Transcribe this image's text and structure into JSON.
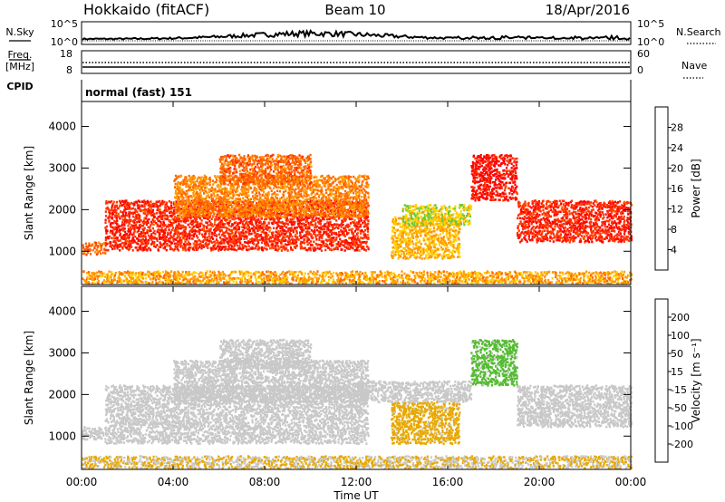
{
  "header": {
    "left": "Hokkaido (fitACF)",
    "center": "Beam 10",
    "right": "18/Apr/2016"
  },
  "info": {
    "nsky_label": "N.Sky",
    "nsky_ticks": [
      "10^5",
      "10^0"
    ],
    "nsearch_label": "N.Search",
    "nsearch_ticks": [
      "10^5",
      "10^0"
    ],
    "freq_label_1": "Freq.",
    "freq_label_2": "[MHz]",
    "freq_ticks": [
      "18",
      "8"
    ],
    "nave_label": "Nave",
    "nave_ticks": [
      "60",
      "0"
    ],
    "cpid_label": "CPID",
    "mode_text": "normal (fast) 151"
  },
  "colors": {
    "power": [
      "#0000ff",
      "#1f4fa0",
      "#2e8b57",
      "#66cc33",
      "#ffd000",
      "#ff9900",
      "#ff6600",
      "#ff3300",
      "#ff0000"
    ],
    "velocity": [
      "#ff0000",
      "#ff5500",
      "#ff9900",
      "#e8a800",
      "#c8c8c8",
      "#55bb33",
      "#2e8b57",
      "#1f3fa0",
      "#0000cc"
    ],
    "ground": "#c8c8c8"
  },
  "chart_data": [
    {
      "type": "heatmap",
      "title": "",
      "xlabel": "",
      "ylabel": "Slant Range [km]",
      "xlim": [
        0,
        24
      ],
      "ylim": [
        200,
        4600
      ],
      "yticks": [
        "1000",
        "2000",
        "3000",
        "4000"
      ],
      "colorbar": {
        "label": "Power [dB]",
        "ticks": [
          "4",
          "8",
          "12",
          "16",
          "20",
          "24",
          "28"
        ],
        "range": [
          0,
          30
        ]
      },
      "echo_bands": [
        {
          "t0": 0.0,
          "t1": 1.0,
          "r0": 900,
          "r1": 1200,
          "value": 22
        },
        {
          "t0": 1.0,
          "t1": 12.5,
          "r0": 1000,
          "r1": 2200,
          "value": 26
        },
        {
          "t0": 4.0,
          "t1": 12.5,
          "r0": 1800,
          "r1": 2800,
          "value": 20
        },
        {
          "t0": 6.0,
          "t1": 10.0,
          "r0": 2600,
          "r1": 3300,
          "value": 22
        },
        {
          "t0": 13.5,
          "t1": 16.5,
          "r0": 800,
          "r1": 1800,
          "value": 17
        },
        {
          "t0": 14.0,
          "t1": 17.0,
          "r0": 1600,
          "r1": 2100,
          "value": 14
        },
        {
          "t0": 17.0,
          "t1": 19.0,
          "r0": 2200,
          "r1": 3300,
          "value": 28
        },
        {
          "t0": 19.0,
          "t1": 24.0,
          "r0": 1200,
          "r1": 2200,
          "value": 26
        },
        {
          "t0": 0.0,
          "t1": 24.0,
          "r0": 200,
          "r1": 500,
          "value": 18
        }
      ]
    },
    {
      "type": "heatmap",
      "title": "",
      "xlabel": "Time UT",
      "ylabel": "Slant Range [km]",
      "xlim": [
        0,
        24
      ],
      "ylim": [
        200,
        4600
      ],
      "xticks": [
        "00:00",
        "04:00",
        "08:00",
        "12:00",
        "16:00",
        "20:00",
        "00:00"
      ],
      "yticks": [
        "1000",
        "2000",
        "3000",
        "4000"
      ],
      "colorbar": {
        "label": "Velocity [m s⁻¹]",
        "ticks": [
          "200",
          "100",
          "50",
          "15",
          "-15",
          "-50",
          "-100",
          "-200"
        ],
        "range": [
          -250,
          250
        ]
      },
      "echo_bands": [
        {
          "t0": 0.0,
          "t1": 1.0,
          "r0": 900,
          "r1": 1200,
          "value": 0
        },
        {
          "t0": 1.0,
          "t1": 12.5,
          "r0": 800,
          "r1": 2200,
          "value": 0
        },
        {
          "t0": 4.0,
          "t1": 12.5,
          "r0": 1800,
          "r1": 2800,
          "value": 10
        },
        {
          "t0": 6.0,
          "t1": 10.0,
          "r0": 2600,
          "r1": 3300,
          "value": -10
        },
        {
          "t0": 13.5,
          "t1": 16.5,
          "r0": 800,
          "r1": 1800,
          "value": -40
        },
        {
          "t0": 12.0,
          "t1": 17.0,
          "r0": 1800,
          "r1": 2300,
          "value": 0
        },
        {
          "t0": 17.0,
          "t1": 19.0,
          "r0": 2200,
          "r1": 3300,
          "value": 40
        },
        {
          "t0": 19.0,
          "t1": 24.0,
          "r0": 1200,
          "r1": 2200,
          "value": 0
        },
        {
          "t0": 0.0,
          "t1": 24.0,
          "r0": 200,
          "r1": 500,
          "value": -30
        }
      ]
    }
  ]
}
